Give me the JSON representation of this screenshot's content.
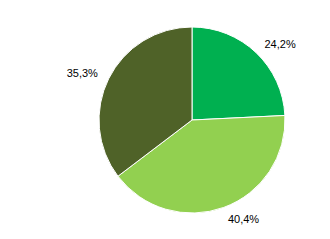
{
  "chart_data": {
    "type": "pie",
    "values": [
      24.2,
      40.4,
      35.3
    ],
    "value_labels": [
      "24,2%",
      "40,4%",
      "35,3%"
    ],
    "colors": [
      "#00b050",
      "#92d050",
      "#4f6228"
    ],
    "data_labels": true
  }
}
